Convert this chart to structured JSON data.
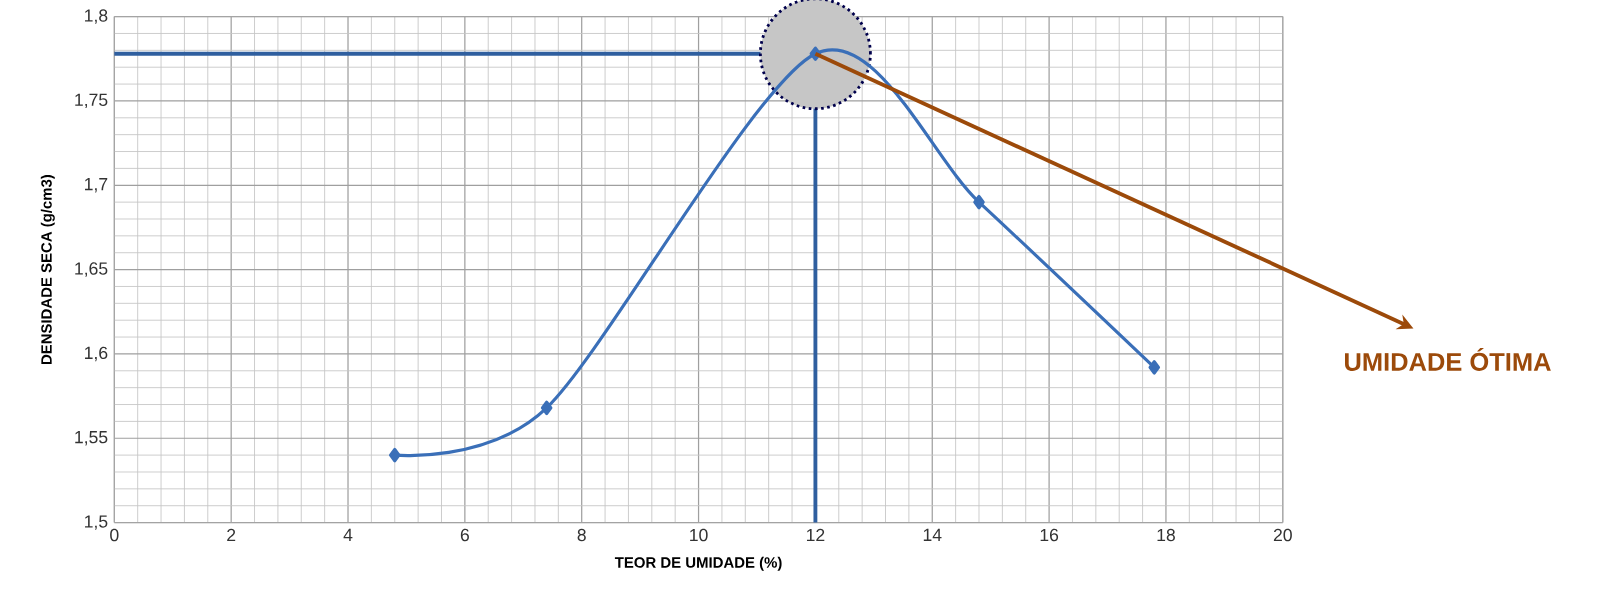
{
  "chart_data": {
    "type": "line",
    "xlabel": "TEOR DE UMIDADE (%)",
    "ylabel": "DENSIDADE SECA (g/cm3)",
    "x": [
      4.8,
      7.4,
      12,
      14.8,
      17.8
    ],
    "series": [
      {
        "color": "#3a6fb8",
        "values": [
          1.54,
          1.568,
          1.778,
          1.69,
          1.592
        ]
      }
    ],
    "xlim": [
      0,
      20
    ],
    "ylim": [
      1.5,
      1.8
    ],
    "xticks": [
      0,
      2,
      4,
      6,
      8,
      10,
      12,
      14,
      16,
      18,
      20
    ],
    "yticks": [
      {
        "value": 1.5,
        "label": "1,5"
      },
      {
        "value": 1.55,
        "label": "1,55"
      },
      {
        "value": 1.6,
        "label": "1,6"
      },
      {
        "value": 1.65,
        "label": "1,65"
      },
      {
        "value": 1.7,
        "label": "1,7"
      },
      {
        "value": 1.75,
        "label": "1,75"
      },
      {
        "value": 1.8,
        "label": "1,8"
      }
    ],
    "grid": true,
    "marker": "diamond",
    "line_style": "solid",
    "ref_lines": [
      {
        "axis": "y",
        "value": 1.778,
        "color": "#2f5f9f"
      },
      {
        "axis": "x",
        "value": 12,
        "color": "#2f5f9f"
      }
    ],
    "annotations": [
      {
        "text": "UMIDADE ÓTIMA",
        "x": 12,
        "y": 1.778
      }
    ]
  }
}
